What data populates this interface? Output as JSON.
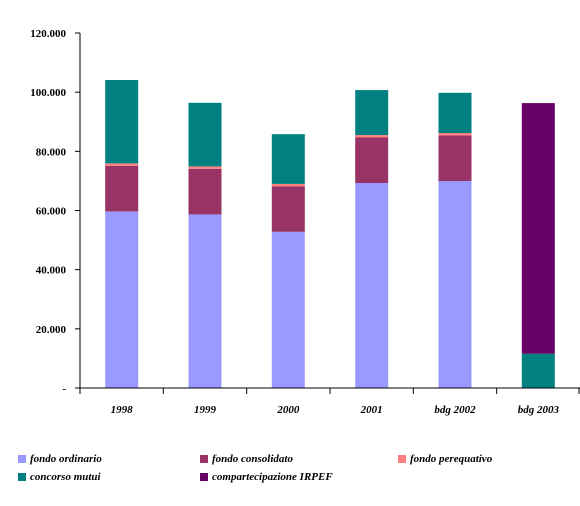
{
  "chart_data": {
    "type": "bar",
    "stacked": true,
    "categories": [
      "1998",
      "1999",
      "2000",
      "2001",
      "bdg 2002",
      "bdg 2003"
    ],
    "series": [
      {
        "name": "fondo ordinario",
        "color": "#9999ff",
        "values": [
          59700,
          58700,
          52800,
          69300,
          70000,
          0
        ]
      },
      {
        "name": "fondo consolidato",
        "color": "#993366",
        "values": [
          15400,
          15400,
          15400,
          15400,
          15400,
          0
        ]
      },
      {
        "name": "fondo perequativo",
        "color": "#ff8080",
        "values": [
          800,
          800,
          800,
          800,
          800,
          0
        ]
      },
      {
        "name": "concorso mutui",
        "color": "#008080",
        "values": [
          28200,
          21500,
          16800,
          15200,
          13600,
          11600
        ]
      },
      {
        "name": "compartecipazione IRPEF",
        "color": "#660066",
        "values": [
          0,
          0,
          0,
          0,
          0,
          84700
        ]
      }
    ],
    "yticks": [
      "120.000",
      "100.000",
      "80.000",
      "60.000",
      "40.000",
      "20.000",
      "-"
    ],
    "ylim": [
      0,
      120000
    ],
    "title": "",
    "xlabel": "",
    "ylabel": "",
    "grid": false,
    "legend_position": "bottom"
  }
}
